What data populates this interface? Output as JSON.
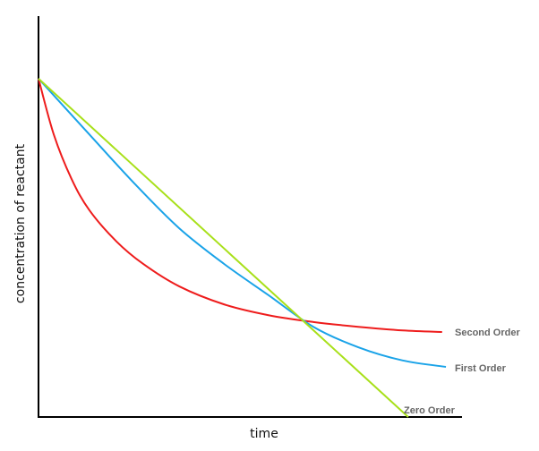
{
  "chart_data": {
    "type": "line",
    "title": "",
    "xlabel": "time",
    "ylabel": "concentration of reactant",
    "xlim": [
      0,
      10
    ],
    "ylim": [
      0,
      10
    ],
    "grid": false,
    "legend": "inline labels at line ends",
    "series": [
      {
        "name": "Second Order",
        "color": "#ee1c1c",
        "x": [
          0,
          0.36,
          0.78,
          1.2,
          1.84,
          2.47,
          3.32,
          4.38,
          5.43,
          6.49,
          7.55,
          8.6,
          9.53
        ],
        "y": [
          8.44,
          7.05,
          5.94,
          5.16,
          4.38,
          3.82,
          3.26,
          2.81,
          2.54,
          2.37,
          2.25,
          2.16,
          2.12
        ]
      },
      {
        "name": "First Order",
        "color": "#1aa3e8",
        "x": [
          0,
          1.2,
          2.26,
          3.32,
          4.38,
          5.43,
          6.49,
          7.55,
          8.6,
          9.62
        ],
        "y": [
          8.44,
          7.05,
          5.83,
          4.71,
          3.82,
          3.04,
          2.25,
          1.74,
          1.41,
          1.25
        ]
      },
      {
        "name": "Zero Order",
        "color": "#a8e01a",
        "x": [
          0,
          8.73
        ],
        "y": [
          8.44,
          0
        ]
      }
    ]
  }
}
